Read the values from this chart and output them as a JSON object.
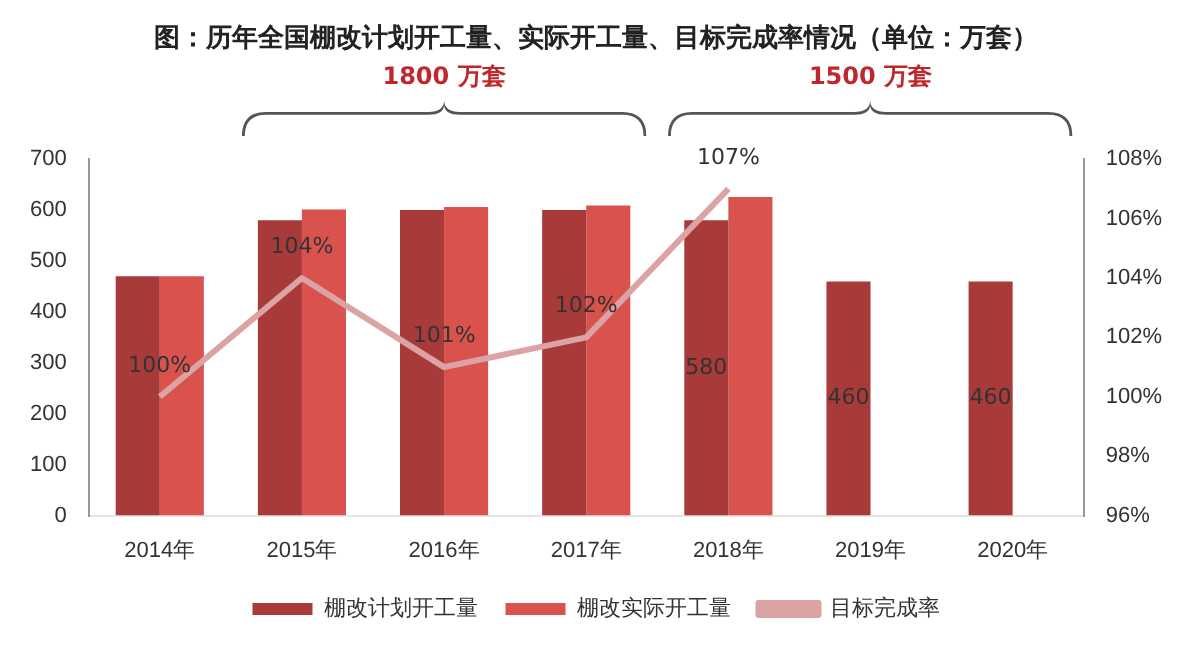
{
  "chart_data": {
    "type": "bar",
    "title": "图：历年全国棚改计划开工量、实际开工量、目标完成率情况（单位：万套）",
    "categories": [
      "2014年",
      "2015年",
      "2016年",
      "2017年",
      "2018年",
      "2019年",
      "2020年"
    ],
    "series": [
      {
        "name": "棚改计划开工量",
        "color": "#a83a3a",
        "values": [
          470,
          580,
          600,
          600,
          580,
          460,
          460
        ],
        "value_labels": [
          null,
          null,
          null,
          null,
          "580",
          "460",
          "460"
        ]
      },
      {
        "name": "棚改实际开工量",
        "color": "#d9524e",
        "values": [
          470,
          601,
          606,
          609,
          626,
          null,
          null
        ]
      },
      {
        "name": "目标完成率",
        "type": "line",
        "axis": "y2",
        "color": "#dba3a3",
        "values": [
          100,
          104,
          101,
          102,
          107,
          null,
          null
        ],
        "value_labels": [
          "100%",
          "104%",
          "101%",
          "102%",
          "107%",
          null,
          null
        ]
      }
    ],
    "ylim": [
      0,
      700
    ],
    "yticks": [
      0,
      100,
      200,
      300,
      400,
      500,
      600,
      700
    ],
    "y2lim": [
      96,
      108
    ],
    "y2ticks": [
      {
        "value": 96,
        "label": "96%"
      },
      {
        "value": 98,
        "label": "98%"
      },
      {
        "value": 100,
        "label": "100%"
      },
      {
        "value": 102,
        "label": "102%"
      },
      {
        "value": 104,
        "label": "104%"
      },
      {
        "value": 106,
        "label": "106%"
      },
      {
        "value": 108,
        "label": "108%"
      }
    ],
    "annotations": [
      "1800 万套",
      "1500 万套"
    ],
    "marker": "none",
    "grid": false,
    "legend": "bottom"
  }
}
